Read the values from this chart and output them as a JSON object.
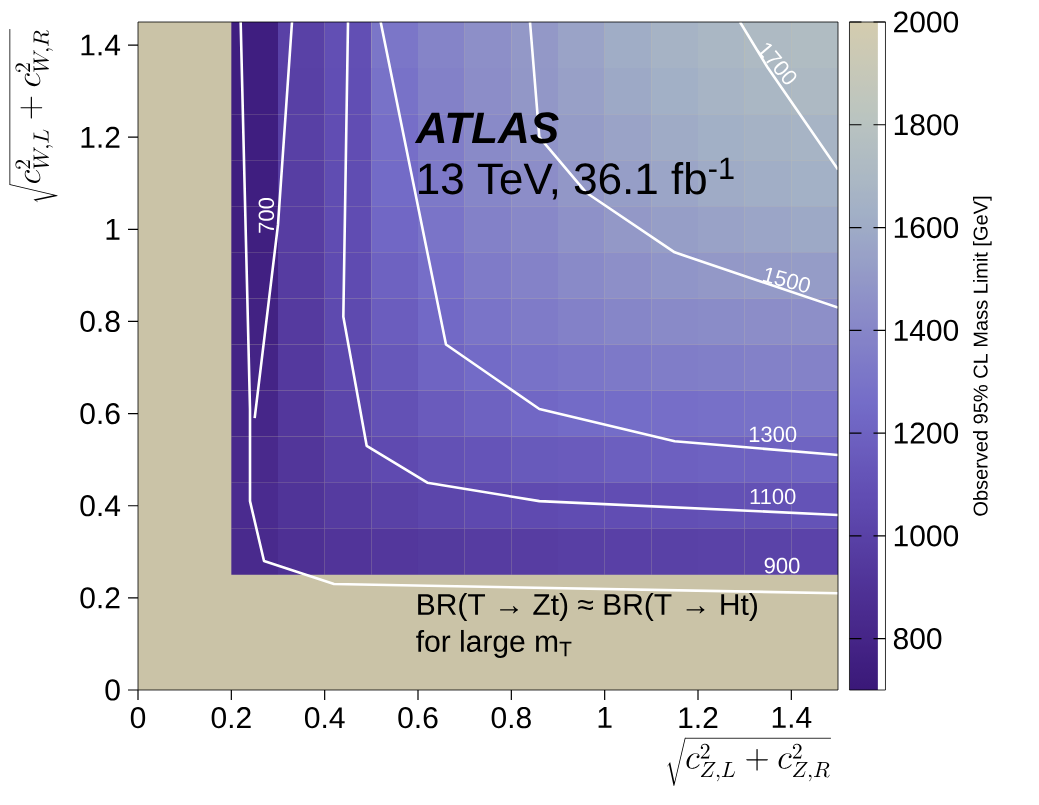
{
  "chart_data": {
    "type": "heatmap",
    "xlabel": "\\sqrt{c^{2}_{Z,L} + c^{2}_{Z,R}}",
    "ylabel": "\\sqrt{c^{2}_{W,L} + c^{2}_{W,R}}",
    "clabel": "Observed 95% CL Mass Limit [GeV]",
    "x": [
      0.05,
      0.15,
      0.25,
      0.35,
      0.45,
      0.55,
      0.65,
      0.75,
      0.85,
      0.95,
      1.05,
      1.15,
      1.25,
      1.35,
      1.45
    ],
    "y": [
      1.4,
      1.3,
      1.2,
      1.1,
      1.0,
      0.9,
      0.8,
      0.7,
      0.6,
      0.5,
      0.4,
      0.3
    ],
    "cells": [
      [
        null,
        null,
        750,
        1000,
        1090,
        1310,
        1390,
        1450,
        1500,
        1560,
        1610,
        1660,
        1690,
        1720,
        1740
      ],
      [
        null,
        null,
        750,
        990,
        1085,
        1290,
        1370,
        1440,
        1490,
        1540,
        1590,
        1630,
        1670,
        1690,
        1710
      ],
      [
        null,
        null,
        750,
        990,
        1080,
        1270,
        1350,
        1420,
        1470,
        1520,
        1560,
        1600,
        1630,
        1650,
        1670
      ],
      [
        null,
        null,
        750,
        980,
        1075,
        1250,
        1330,
        1400,
        1440,
        1490,
        1530,
        1570,
        1600,
        1620,
        1640
      ],
      [
        null,
        null,
        755,
        975,
        1070,
        1230,
        1300,
        1370,
        1410,
        1460,
        1500,
        1530,
        1550,
        1570,
        1590
      ],
      [
        null,
        null,
        765,
        965,
        1065,
        1200,
        1270,
        1340,
        1380,
        1420,
        1450,
        1480,
        1500,
        1510,
        1520
      ],
      [
        null,
        null,
        775,
        955,
        1055,
        1170,
        1240,
        1300,
        1340,
        1370,
        1400,
        1420,
        1430,
        1440,
        1450
      ],
      [
        null,
        null,
        790,
        945,
        1045,
        1140,
        1210,
        1250,
        1290,
        1310,
        1330,
        1350,
        1360,
        1370,
        1380
      ],
      [
        null,
        null,
        810,
        935,
        1030,
        1100,
        1160,
        1200,
        1230,
        1250,
        1260,
        1270,
        1280,
        1290,
        1300
      ],
      [
        null,
        null,
        835,
        925,
        1000,
        1060,
        1100,
        1120,
        1150,
        1160,
        1180,
        1190,
        1200,
        1200,
        1210
      ],
      [
        null,
        null,
        850,
        910,
        960,
        1000,
        1030,
        1050,
        1060,
        1070,
        1080,
        1090,
        1100,
        1100,
        1110
      ],
      [
        null,
        null,
        840,
        885,
        915,
        935,
        950,
        965,
        975,
        985,
        995,
        1000,
        1005,
        1010,
        1015
      ]
    ],
    "clim": [
      700,
      2000
    ],
    "cticks": [
      800,
      1000,
      1200,
      1400,
      1600,
      1800,
      2000
    ],
    "xlim": [
      0,
      1.5
    ],
    "ylim": [
      0,
      1.45
    ],
    "xticks": [
      0,
      0.2,
      0.4,
      0.6,
      0.8,
      1,
      1.2,
      1.4
    ],
    "yticks": [
      0,
      0.2,
      0.4,
      0.6,
      0.8,
      1,
      1.2,
      1.4
    ],
    "series": [
      {
        "type": "line",
        "color": "#ffffff",
        "x": [
          0.33,
          0.3,
          0.25
        ],
        "values": [
          1.45,
          1.01,
          0.59
        ]
      },
      {
        "type": "line",
        "color": "#ffffff",
        "x": [
          0.22,
          0.24,
          0.24,
          0.27,
          0.42,
          1.5
        ],
        "values": [
          1.45,
          0.61,
          0.41,
          0.28,
          0.23,
          0.21
        ]
      },
      {
        "type": "line",
        "color": "#ffffff",
        "x": [
          0.45,
          0.44,
          0.49,
          0.62,
          0.86,
          1.5
        ],
        "values": [
          1.45,
          0.81,
          0.53,
          0.45,
          0.41,
          0.38
        ]
      },
      {
        "type": "line",
        "color": "#ffffff",
        "x": [
          0.52,
          0.66,
          0.86,
          1.15,
          1.5
        ],
        "values": [
          1.45,
          0.75,
          0.61,
          0.54,
          0.51
        ]
      },
      {
        "type": "line",
        "color": "#ffffff",
        "x": [
          0.84,
          0.86,
          0.96,
          1.15,
          1.5
        ],
        "values": [
          1.45,
          1.2,
          1.08,
          0.95,
          0.83
        ]
      },
      {
        "type": "line",
        "color": "#ffffff",
        "x": [
          1.29,
          1.35,
          1.5
        ],
        "values": [
          1.45,
          1.35,
          1.13
        ]
      }
    ],
    "annotations": [
      "ATLAS",
      "13 TeV, 36.1 fb$^{-1}$",
      "BR(T → Zt) ≈ BR(T → Ht)",
      "for large m$_{T}$",
      "700",
      "900",
      "1100",
      "1300",
      "1500",
      "1700"
    ]
  }
}
